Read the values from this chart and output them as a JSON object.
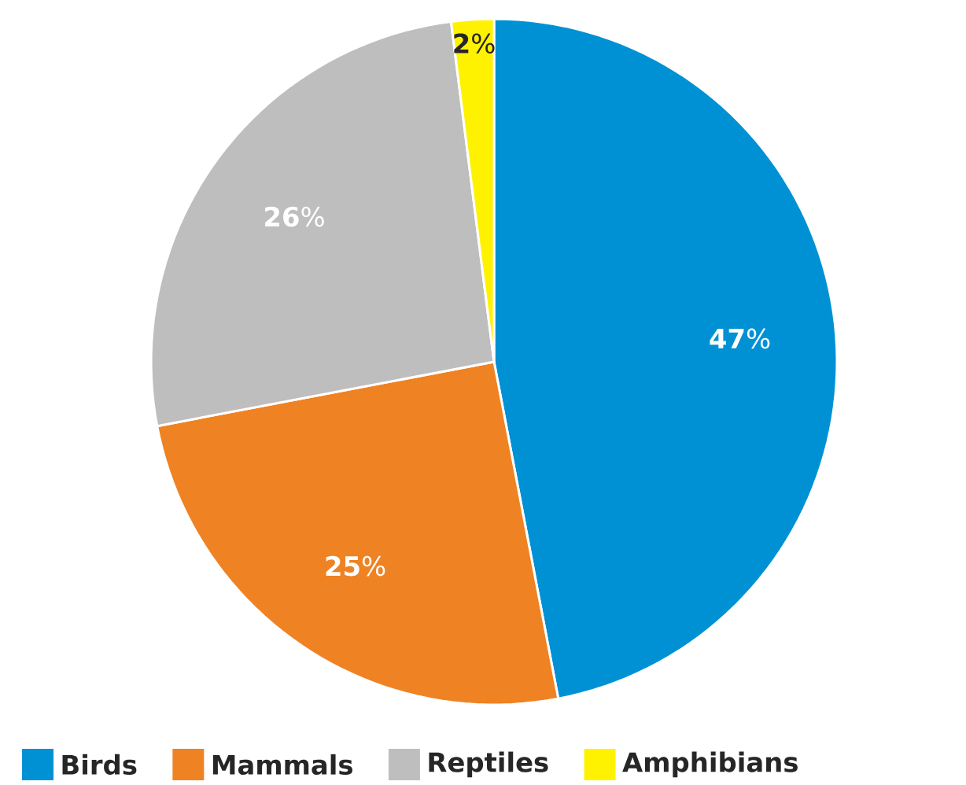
{
  "chart_data": {
    "type": "pie",
    "categories": [
      "Birds",
      "Mammals",
      "Reptiles",
      "Amphibians"
    ],
    "values": [
      47,
      25,
      26,
      2
    ],
    "colors": [
      "#0091d4",
      "#ef8222",
      "#bebebe",
      "#fff200"
    ],
    "value_labels": [
      "**47**%",
      "**25**%",
      "**26**%",
      "**2**%"
    ],
    "legend": "bottom"
  }
}
